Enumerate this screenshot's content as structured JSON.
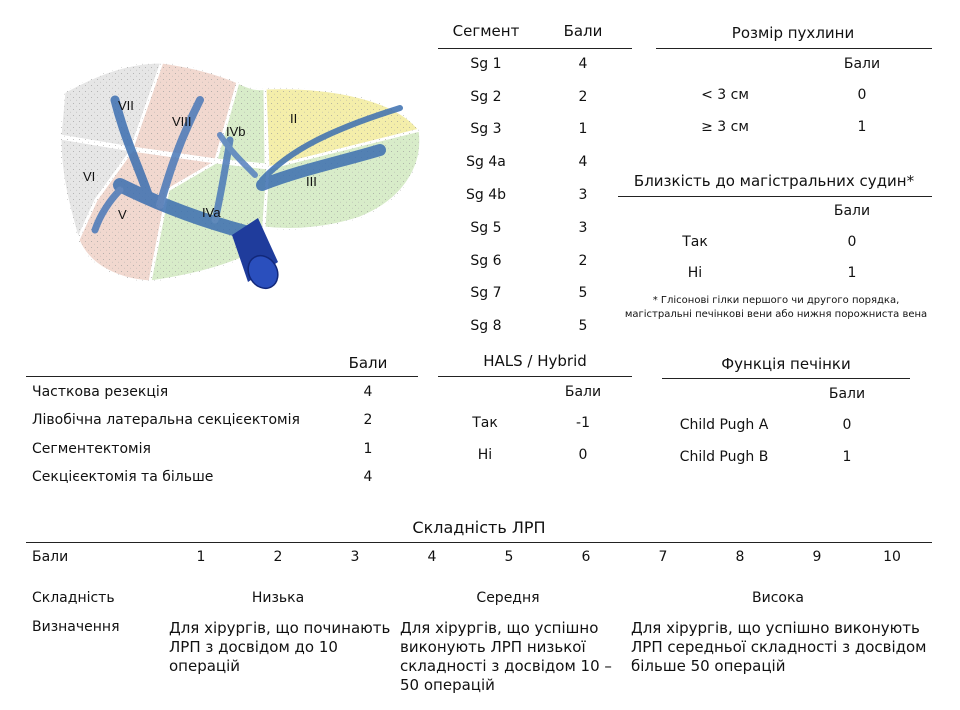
{
  "segments": {
    "headers": [
      "Сегмент",
      "Бали"
    ],
    "rows": [
      [
        "Sg 1",
        "4"
      ],
      [
        "Sg 2",
        "2"
      ],
      [
        "Sg 3",
        "1"
      ],
      [
        "Sg 4a",
        "4"
      ],
      [
        "Sg 4b",
        "3"
      ],
      [
        "Sg 5",
        "3"
      ],
      [
        "Sg 6",
        "2"
      ],
      [
        "Sg 7",
        "5"
      ],
      [
        "Sg 8",
        "5"
      ]
    ]
  },
  "liver_diagram": {
    "labels": [
      "VII",
      "VIII",
      "IVb",
      "II",
      "VI",
      "III",
      "V",
      "IVa"
    ],
    "colors": {
      "right_posterior": "#e6e6e6",
      "right_anterior": "#f1d8cf",
      "left_medial": "#d8ecc9",
      "left_lateral_upper": "#f4eeaa",
      "left_lateral_lower": "#d8ecc9",
      "vessels": "#3c6fb0",
      "ivc": "#1f3c9c"
    }
  },
  "tumor_size": {
    "title": "Розмір пухлини",
    "header": "Бали",
    "rows": [
      [
        "< 3 см",
        "0"
      ],
      [
        "≥ 3 см",
        "1"
      ]
    ]
  },
  "vessels": {
    "title": "Близкість до магістральних судин*",
    "header": "Бали",
    "rows": [
      [
        "Так",
        "0"
      ],
      [
        "Ні",
        "1"
      ]
    ],
    "footnote": "* Глісонові гілки першого чи другого порядка, магістральні печінкові вени або нижня порожниста вена"
  },
  "resection": {
    "header": "Бали",
    "rows": [
      [
        "Часткова резекція",
        "4"
      ],
      [
        "Лівобічна латеральна секцієектомія",
        "2"
      ],
      [
        "Сегментектомія",
        "1"
      ],
      [
        "Секцієектомія та більше",
        "4"
      ]
    ]
  },
  "hals": {
    "title": "HALS / Hybrid",
    "header": "Бали",
    "rows": [
      [
        "Так",
        "-1"
      ],
      [
        "Ні",
        "0"
      ]
    ]
  },
  "liver_function": {
    "title": "Функція печінки",
    "header": "Бали",
    "rows": [
      [
        "Child Pugh A",
        "0"
      ],
      [
        "Child Pugh B",
        "1"
      ]
    ]
  },
  "difficulty": {
    "title": "Складність ЛРП",
    "points_label": "Бали",
    "points": [
      "1",
      "2",
      "3",
      "4",
      "5",
      "6",
      "7",
      "8",
      "9",
      "10"
    ],
    "level_label": "Складність",
    "levels": [
      "Низька",
      "Середня",
      "Висока"
    ],
    "definition_label": "Визначення",
    "definitions": [
      "Для хірургів, що починають ЛРП з досвідом до 10 операцій",
      "Для хірургів, що успішно виконують ЛРП низької складності з досвідом 10 – 50 операцій",
      "Для хірургів, що успішно виконують ЛРП середньої складності з досвідом більше 50 операцій"
    ]
  }
}
